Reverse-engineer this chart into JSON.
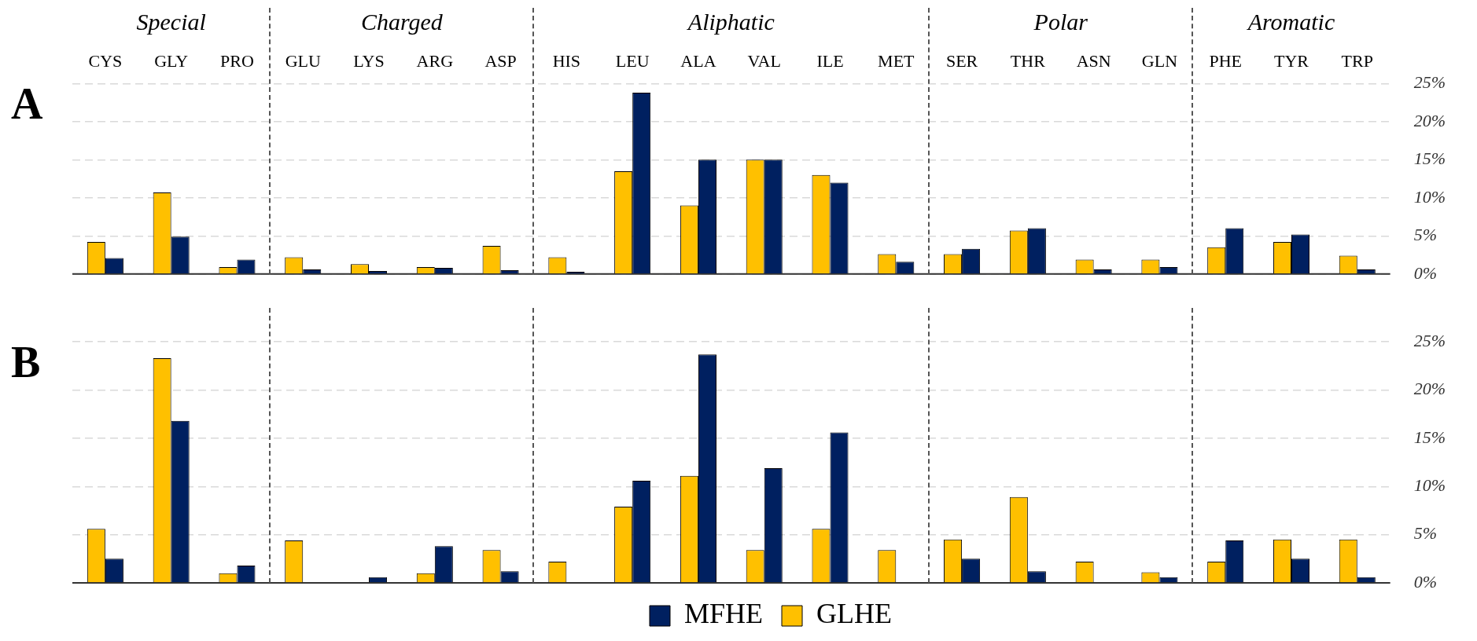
{
  "chart_data": [
    {
      "type": "bar",
      "title": "A",
      "categories": [
        "CYS",
        "GLY",
        "PRO",
        "GLU",
        "LYS",
        "ARG",
        "ASP",
        "HIS",
        "LEU",
        "ALA",
        "VAL",
        "ILE",
        "MET",
        "SER",
        "THR",
        "ASN",
        "GLN",
        "PHE",
        "TYR",
        "TRP"
      ],
      "series": [
        {
          "color": "#ffc000",
          "values": [
            4.2,
            10.7,
            0.9,
            2.2,
            1.3,
            0.9,
            3.7,
            2.2,
            13.5,
            9,
            15,
            13,
            2.6,
            2.6,
            5.7,
            1.9,
            1.9,
            3.5,
            4.2,
            2.4
          ]
        },
        {
          "color": "#002060",
          "values": [
            2.1,
            4.9,
            1.9,
            0.6,
            0.4,
            0.8,
            0.5,
            0.3,
            23.8,
            15,
            15,
            12,
            1.6,
            3.3,
            6,
            0.6,
            0.9,
            6,
            5.2,
            0.6
          ]
        }
      ],
      "annotations": [
        "Special",
        "Charged",
        "Aliphatic",
        "Polar",
        "Aromatic"
      ],
      "ylim": [
        0,
        25
      ],
      "yticks": [
        {
          "value": 0,
          "label": "0%"
        },
        {
          "value": 5,
          "label": "5%"
        },
        {
          "value": 10,
          "label": "10%"
        },
        {
          "value": 15,
          "label": "15%"
        },
        {
          "value": 20,
          "label": "20%"
        },
        {
          "value": 25,
          "label": "25%"
        }
      ],
      "grid": "y",
      "legend": false
    },
    {
      "type": "bar",
      "title": "B",
      "categories": [
        null,
        null,
        null,
        null,
        null,
        null,
        null,
        null,
        null,
        null,
        null,
        null,
        null,
        null,
        null,
        null,
        null,
        null,
        null,
        null
      ],
      "series": [
        {
          "name": "GLHE",
          "color": "#ffc000",
          "values": [
            5.6,
            23.3,
            1.0,
            4.4,
            0,
            1.0,
            3.4,
            2.2,
            7.9,
            11.1,
            3.4,
            5.6,
            3.4,
            4.5,
            8.9,
            2.2,
            1.1,
            2.2,
            4.5,
            4.5
          ]
        },
        {
          "name": "MFHE",
          "color": "#002060",
          "values": [
            2.5,
            16.8,
            1.8,
            0,
            0.6,
            3.8,
            1.2,
            0,
            10.6,
            23.7,
            11.9,
            15.6,
            0,
            2.5,
            1.2,
            0,
            0.6,
            4.4,
            2.5,
            0.6
          ]
        }
      ],
      "ylim": [
        0,
        25
      ],
      "yticks": [
        {
          "value": 0,
          "label": "0%"
        },
        {
          "value": 5,
          "label": "5%"
        },
        {
          "value": 10,
          "label": "10%"
        },
        {
          "value": 15,
          "label": "15%"
        },
        {
          "value": 20,
          "label": "20%"
        },
        {
          "value": 25,
          "label": "25%"
        }
      ],
      "grid": "y",
      "tick_labels": "y",
      "legend": "bottom"
    }
  ]
}
